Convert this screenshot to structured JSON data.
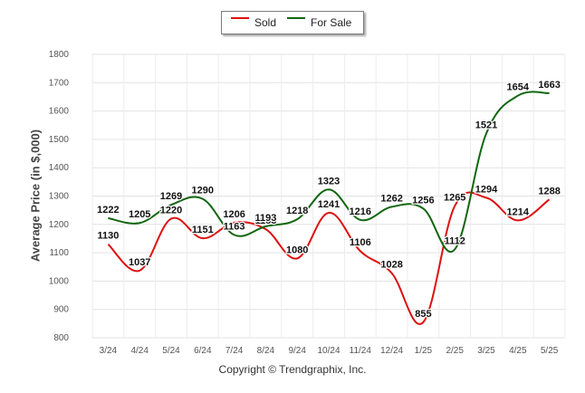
{
  "chart_data": {
    "type": "line",
    "categories": [
      "3/24",
      "4/24",
      "5/24",
      "6/24",
      "7/24",
      "8/24",
      "9/24",
      "10/24",
      "11/24",
      "12/24",
      "1/25",
      "2/25",
      "3/25",
      "4/25",
      "5/25"
    ],
    "series": [
      {
        "name": "Sold",
        "color": "#dd1111",
        "values": [
          1130,
          1037,
          1220,
          1151,
          1206,
          1183,
          1080,
          1241,
          1106,
          1028,
          855,
          1265,
          1294,
          1214,
          1288
        ]
      },
      {
        "name": "For Sale",
        "color": "#116611",
        "values": [
          1222,
          1205,
          1269,
          1290,
          1163,
          1193,
          1218,
          1323,
          1216,
          1262,
          1256,
          1112,
          1521,
          1654,
          1663
        ]
      }
    ],
    "ylabel": "Average Price (in $,000)",
    "ylim": [
      800,
      1800
    ],
    "yticks": [
      800,
      900,
      1000,
      1100,
      1200,
      1300,
      1400,
      1500,
      1600,
      1700,
      1800
    ],
    "grid": true,
    "legend": "top-center"
  },
  "footer": "Copyright © Trendgraphix, Inc."
}
